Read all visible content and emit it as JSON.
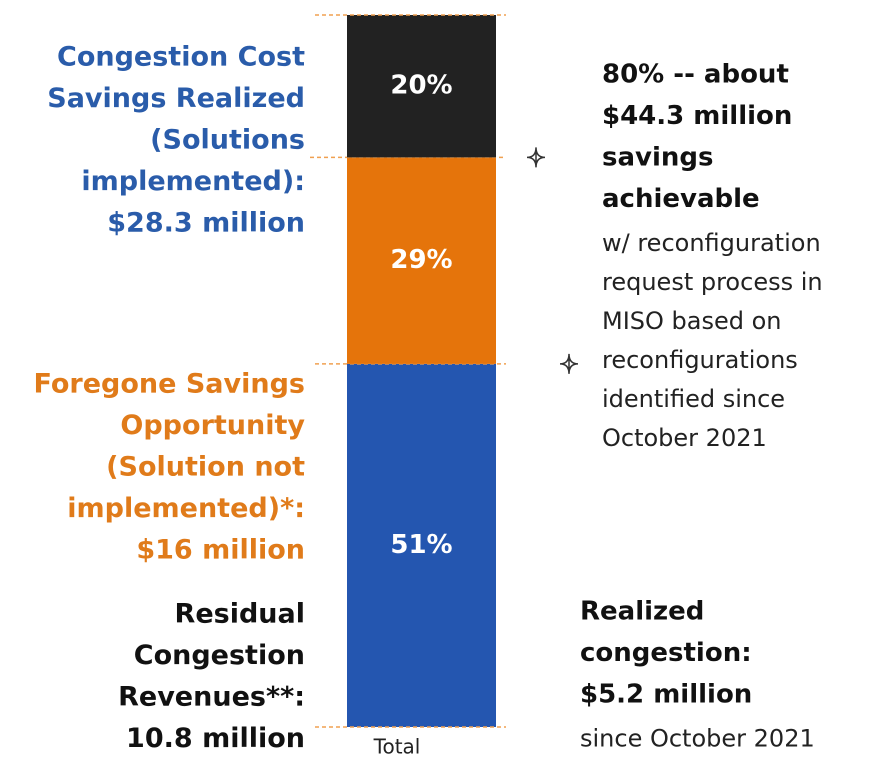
{
  "chart_data": {
    "type": "bar",
    "stacked": true,
    "categories": [
      "Total"
    ],
    "ylim": [
      0,
      100
    ],
    "series": [
      {
        "name": [
          "Congestion Cost",
          "Savings Realized",
          "(Solutions",
          "implemented):",
          "$28.3 million"
        ],
        "color": "#2456b0",
        "label_color": "#2a5caa",
        "values": [
          51
        ],
        "value_labels": [
          "51%"
        ]
      },
      {
        "name": [
          "Foregone Savings",
          "Opportunity",
          "(Solution not",
          "implemented)*:",
          "$16 million"
        ],
        "color": "#e5740b",
        "label_color": "#e07b1a",
        "values": [
          29
        ],
        "value_labels": [
          "29%"
        ]
      },
      {
        "name": [
          "Residual",
          "Congestion",
          "Revenues**:",
          "10.8 million"
        ],
        "color": "#222222",
        "label_color": "#111111",
        "values": [
          20
        ],
        "value_labels": [
          "20%"
        ]
      }
    ],
    "annotations": [
      {
        "bold": [
          "80% -- about",
          "$44.3 million",
          "savings",
          "achievable"
        ],
        "text": [
          "w/ reconfiguration",
          "request process in",
          "MISO based on",
          "reconfigurations",
          "identified since",
          "October 2021"
        ]
      },
      {
        "bold": [
          "Realized",
          "congestion:",
          "$5.2 million"
        ],
        "text": [
          "since October 2021"
        ]
      }
    ]
  }
}
